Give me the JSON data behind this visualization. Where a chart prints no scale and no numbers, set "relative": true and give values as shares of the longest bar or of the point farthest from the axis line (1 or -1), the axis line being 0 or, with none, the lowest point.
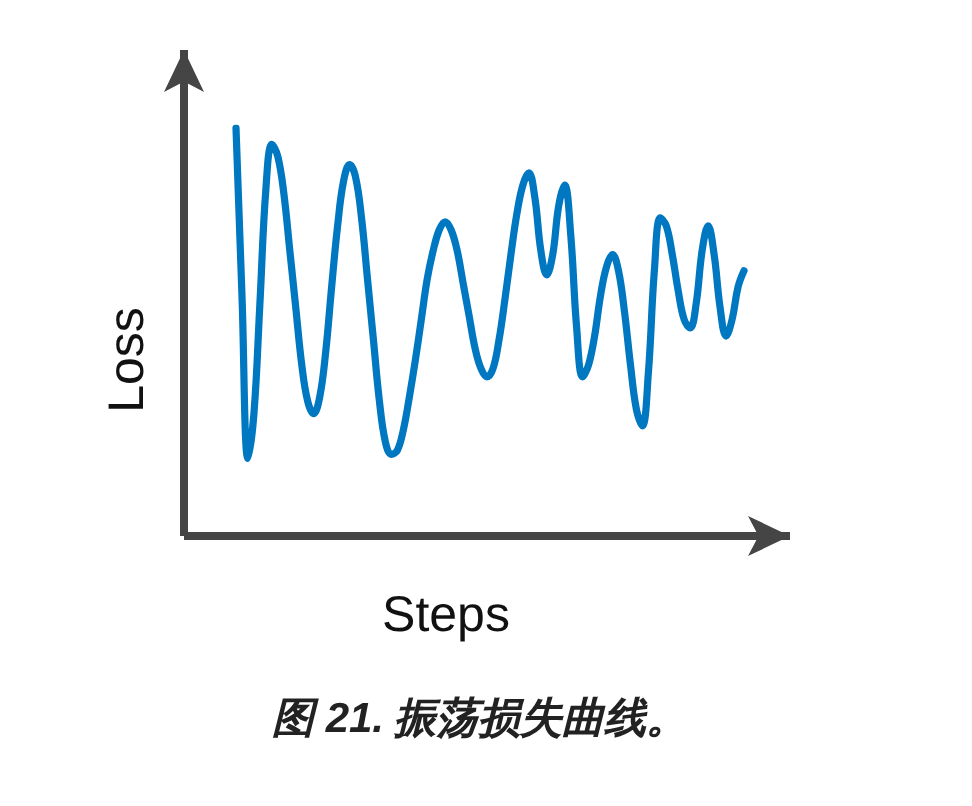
{
  "chart_data": {
    "type": "line",
    "relative": true,
    "xlabel": "Steps",
    "ylabel": "Loss",
    "annotations": [
      "图 21. 振荡损失曲线。"
    ],
    "color": "#0077c1",
    "categories": [
      null,
      null,
      null,
      null,
      null,
      null,
      null,
      null,
      null,
      null,
      null,
      null,
      null,
      null,
      null,
      null,
      null,
      null,
      null,
      null,
      null,
      null,
      null,
      null,
      null,
      null,
      null,
      null,
      null,
      null,
      null,
      null,
      null,
      null,
      null,
      null,
      null,
      null,
      null,
      null,
      null,
      null,
      null,
      null,
      null,
      null,
      null,
      null,
      null,
      null,
      null,
      null,
      null,
      null,
      null,
      null,
      null,
      null,
      null,
      null,
      null,
      null,
      null,
      null,
      null,
      null,
      null,
      null,
      null,
      null,
      null,
      null,
      null,
      null,
      null,
      null,
      null,
      null,
      null,
      null,
      null,
      null,
      null,
      null,
      null,
      null
    ],
    "values": [
      1.0,
      0.59,
      0.19,
      0.3,
      0.57,
      0.85,
      0.96,
      0.93,
      0.84,
      0.7,
      0.56,
      0.42,
      0.33,
      0.3,
      0.34,
      0.45,
      0.61,
      0.76,
      0.87,
      0.91,
      0.88,
      0.78,
      0.63,
      0.48,
      0.33,
      0.23,
      0.2,
      0.21,
      0.26,
      0.34,
      0.43,
      0.53,
      0.63,
      0.7,
      0.75,
      0.77,
      0.75,
      0.7,
      0.62,
      0.54,
      0.46,
      0.41,
      0.39,
      0.41,
      0.48,
      0.58,
      0.69,
      0.79,
      0.86,
      0.89,
      0.83,
      0.7,
      0.64,
      0.69,
      0.81,
      0.86,
      0.74,
      0.51,
      0.39,
      0.42,
      0.49,
      0.59,
      0.66,
      0.69,
      0.65,
      0.55,
      0.42,
      0.31,
      0.27,
      0.4,
      0.65,
      0.78,
      0.76,
      0.69,
      0.6,
      0.53,
      0.51,
      0.57,
      0.7,
      0.76,
      0.69,
      0.56,
      0.49,
      0.53,
      0.61,
      0.65
    ]
  }
}
